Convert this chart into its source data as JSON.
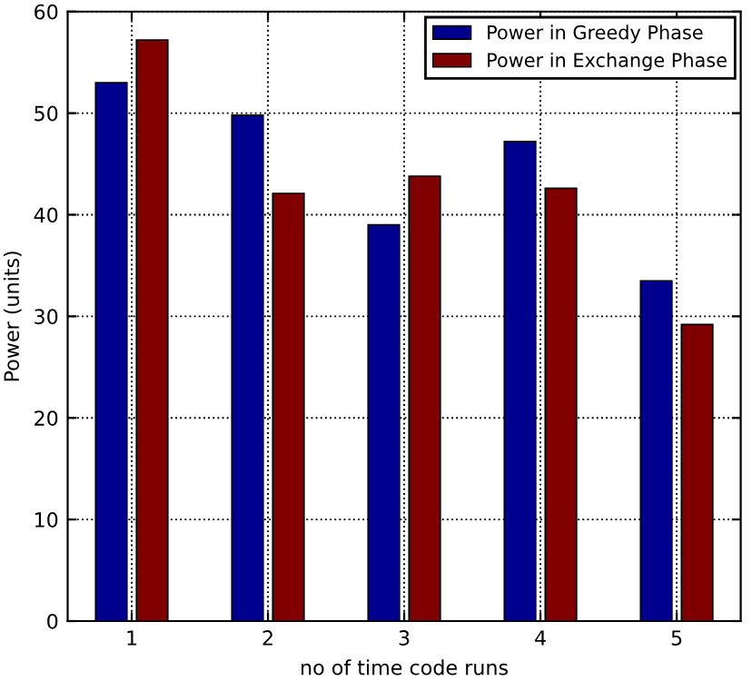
{
  "chart_data": {
    "type": "bar",
    "xlabel": "no of time code runs",
    "ylabel": "Power (units)",
    "categories": [
      "1",
      "2",
      "3",
      "4",
      "5"
    ],
    "series": [
      {
        "name": "Power in Greedy Phase",
        "color": "#00008f",
        "values": [
          53,
          49.8,
          39,
          47.2,
          33.5
        ]
      },
      {
        "name": "Power in Exchange Phase",
        "color": "#800000",
        "values": [
          57.2,
          42.1,
          43.8,
          42.6,
          29.2
        ]
      }
    ],
    "ylim": [
      0,
      60
    ],
    "yticks": [
      0,
      10,
      20,
      30,
      40,
      50,
      60
    ],
    "grid": true,
    "legend": "top right"
  }
}
